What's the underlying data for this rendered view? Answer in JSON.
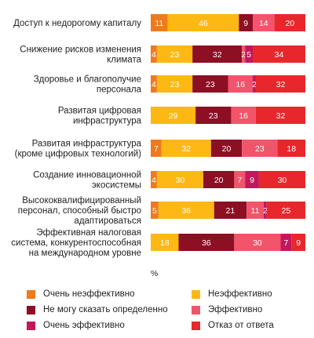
{
  "chart_data": {
    "type": "bar",
    "orientation": "horizontal",
    "stacked": true,
    "unit": "%",
    "categories": [
      "Доступ к недорогому капиталу",
      "Снижение рисков изменения климата",
      "Здоровье и благополучие персонала",
      "Развитая цифровая инфраструктура",
      "Развитая инфраструктура (кроме цифровых технологий)",
      "Создание инновационной экосистемы",
      "Высококвалифицированный персонал, способный быстро адаптироваться",
      "Эффективная налоговая система, конкурентоспособная на международном уровне"
    ],
    "category_lines": [
      [
        "Доступ к недорогому капиталу"
      ],
      [
        "Снижение рисков изменения",
        "климата"
      ],
      [
        "Здоровье и благополучие",
        "персонала"
      ],
      [
        "Развитая цифровая",
        "инфраструктура"
      ],
      [
        "Развитая инфраструктура",
        "(кроме цифровых технологий)"
      ],
      [
        "Создание инновационной",
        "экосистемы"
      ],
      [
        "Высококвалифицированный",
        "персонал, способный быстро",
        "адаптироваться"
      ],
      [
        "Эффективная налоговая",
        "система, конкурентоспособная",
        "на международном уровне"
      ]
    ],
    "series": [
      {
        "name": "Очень неэффективно",
        "color": "#ee7a1f",
        "label_color": "#ffffff",
        "values": [
          11,
          4,
          4,
          0,
          7,
          4,
          5,
          0
        ]
      },
      {
        "name": "Неэффективно",
        "color": "#fdb813",
        "label_color": "#ffffff",
        "values": [
          46,
          23,
          23,
          29,
          32,
          30,
          36,
          18
        ]
      },
      {
        "name": "Не могу сказать определенно",
        "color": "#8c0f24",
        "label_color": "#ffffff",
        "values": [
          9,
          32,
          23,
          23,
          20,
          20,
          21,
          36
        ]
      },
      {
        "name": "Эффективно",
        "color": "#f2546b",
        "label_color": "#ffffff",
        "values": [
          14,
          2,
          16,
          16,
          23,
          7,
          11,
          30
        ]
      },
      {
        "name": "Очень эффективно",
        "color": "#c2185b",
        "label_color": "#ffffff",
        "values": [
          0,
          5,
          2,
          0,
          0,
          9,
          2,
          7
        ]
      },
      {
        "name": "Отказ от ответа",
        "color": "#e8272c",
        "label_color": "#ffffff",
        "values": [
          20,
          34,
          32,
          32,
          18,
          30,
          25,
          9
        ]
      }
    ],
    "legend_position": "bottom",
    "grid": false
  }
}
